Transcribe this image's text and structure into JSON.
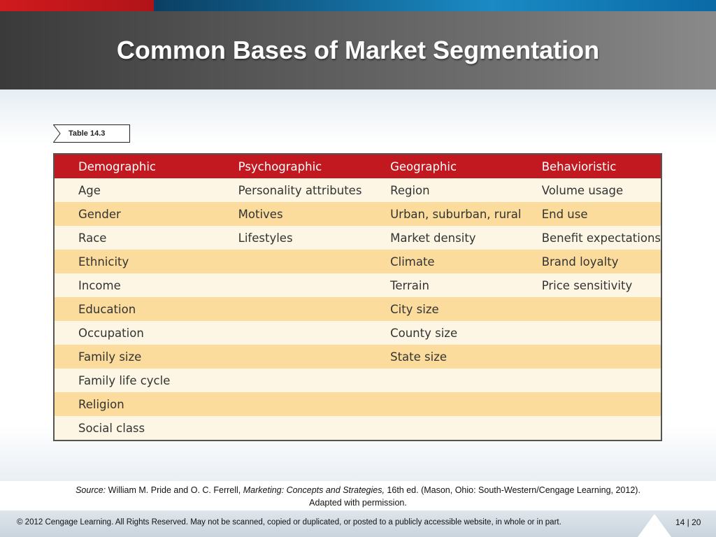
{
  "slide": {
    "title": "Common Bases of Market Segmentation",
    "table_tag": "Table 14.3"
  },
  "table": {
    "headers": [
      "Demographic",
      "Psychographic",
      "Geographic",
      "Behavioristic"
    ],
    "rows": [
      [
        "Age",
        "Personality attributes",
        "Region",
        "Volume usage"
      ],
      [
        "Gender",
        "Motives",
        "Urban, suburban, rural",
        "End use"
      ],
      [
        "Race",
        "Lifestyles",
        "Market density",
        "Benefit expectations"
      ],
      [
        "Ethnicity",
        "",
        "Climate",
        "Brand loyalty"
      ],
      [
        "Income",
        "",
        "Terrain",
        "Price sensitivity"
      ],
      [
        "Education",
        "",
        "City size",
        ""
      ],
      [
        "Occupation",
        "",
        "County size",
        ""
      ],
      [
        "Family size",
        "",
        "State size",
        ""
      ],
      [
        "Family life cycle",
        "",
        "",
        ""
      ],
      [
        "Religion",
        "",
        "",
        ""
      ],
      [
        "Social class",
        "",
        "",
        ""
      ]
    ]
  },
  "source": {
    "label": "Source:",
    "authors": " William M. Pride and O. C. Ferrell, ",
    "book": "Marketing: Concepts and Strategies,",
    "details": " 16th ed. (Mason, Ohio: South-Western/Cengage Learning, 2012). Adapted with permission."
  },
  "footer": {
    "copyright": "© 2012 Cengage Learning. All Rights Reserved. May not be scanned, copied or duplicated, or posted to a publicly accessible website, in whole or in part.",
    "slide_number": "14 | 20"
  },
  "colors": {
    "header_red": "#c1191f",
    "row_light": "#fdf6e4",
    "row_dark": "#fbdc9c"
  }
}
